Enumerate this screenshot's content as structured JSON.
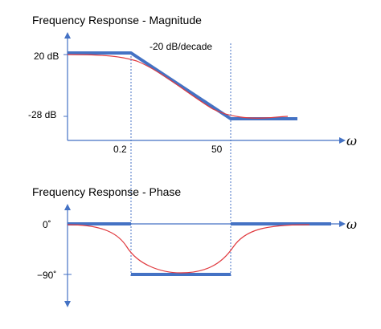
{
  "magnitude_panel": {
    "title": "Frequency Response - Magnitude",
    "y_ticks": [
      "20 dB",
      "-28 dB"
    ],
    "x_ticks": [
      "0.2",
      "50"
    ],
    "slope_label": "-20 dB/decade",
    "axis_symbol": "ω"
  },
  "phase_panel": {
    "title": "Frequency Response - Phase",
    "y_ticks": [
      "0˚",
      "−90˚"
    ],
    "axis_symbol": "ω"
  },
  "colors": {
    "axis": "#4472c4",
    "asymptote": "#4472c4",
    "actual_curve": "#e0393e",
    "guide": "#4472c4"
  }
}
